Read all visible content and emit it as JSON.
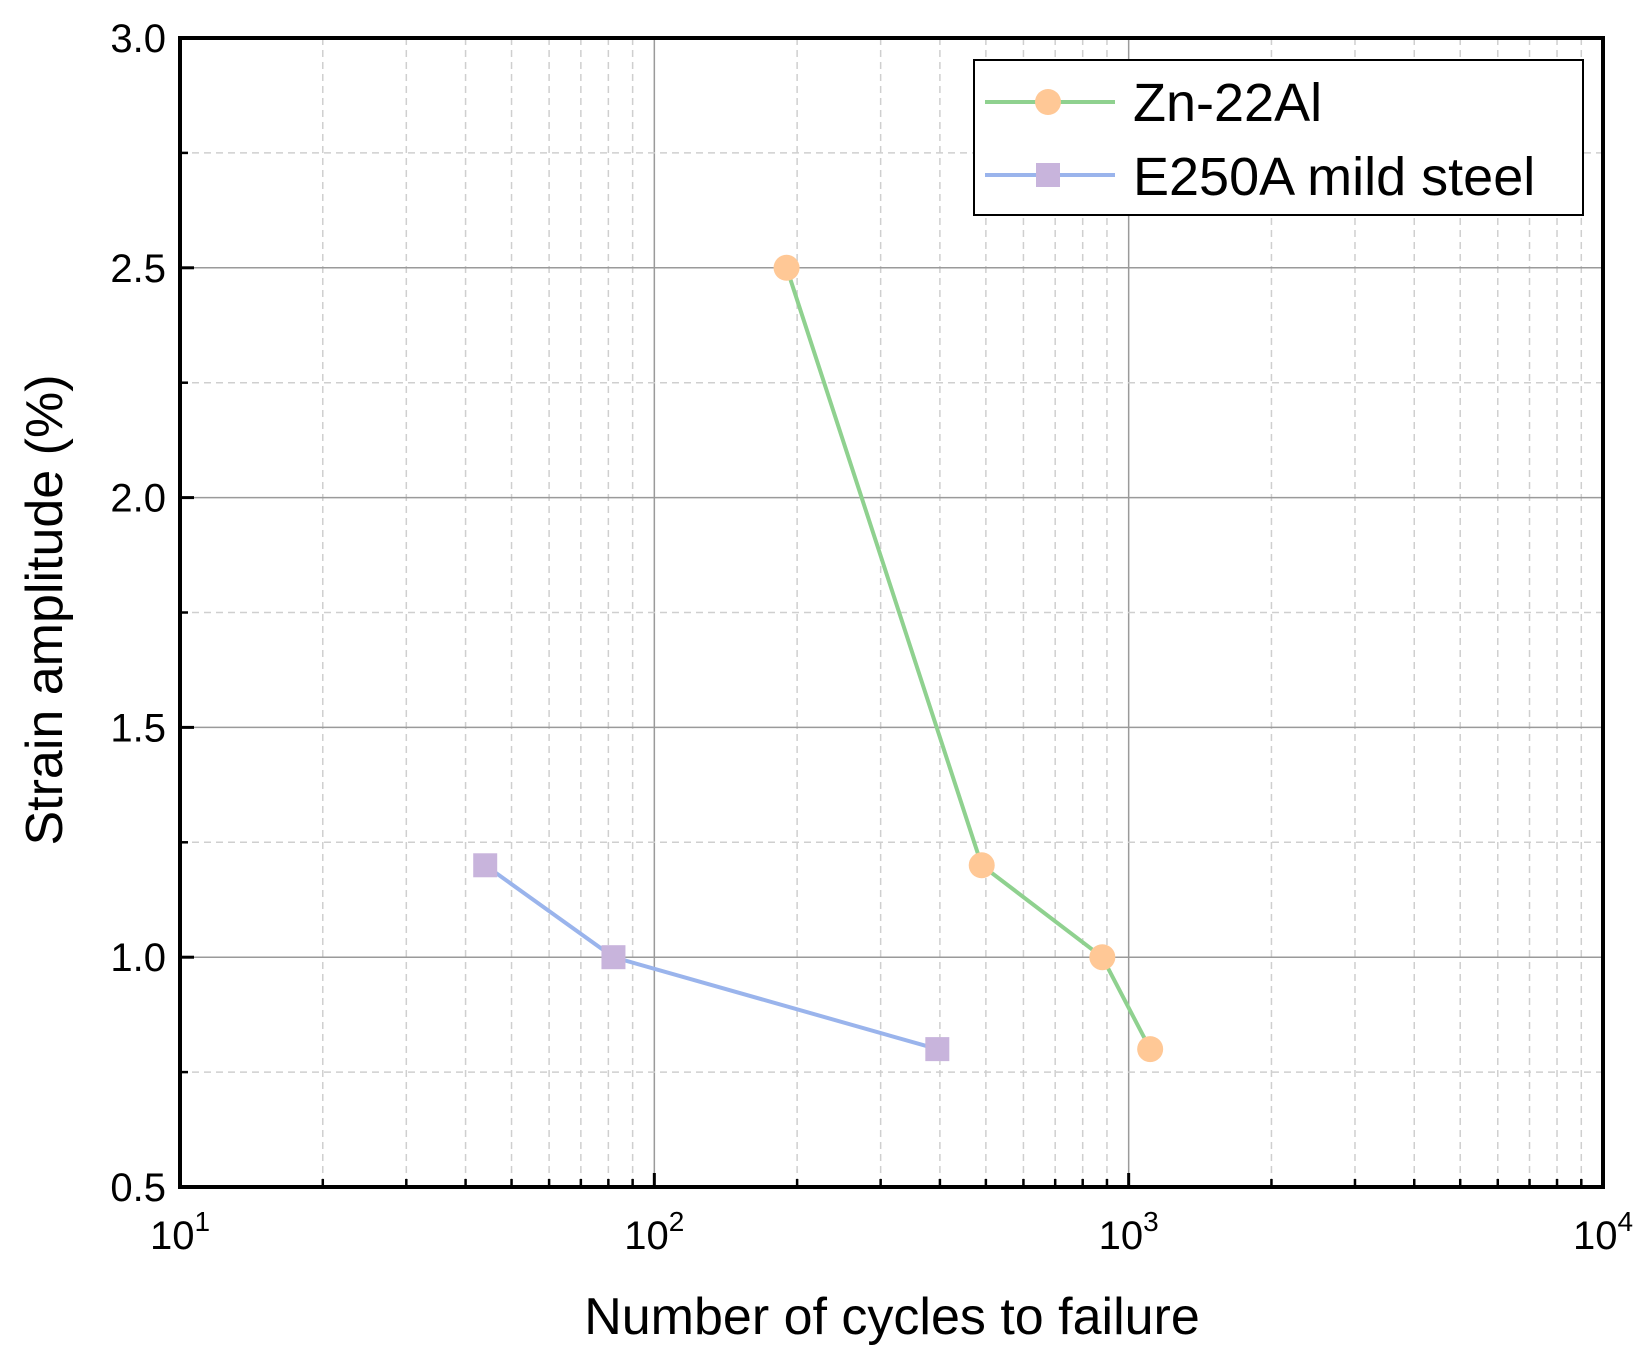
{
  "chart_data": {
    "type": "line",
    "title": "",
    "xlabel": "Number of cycles to failure",
    "ylabel": "Strain amplitude (%)",
    "x_scale": "log",
    "xlim": [
      10,
      10000
    ],
    "ylim": [
      0.5,
      3.0
    ],
    "x_ticks": [
      {
        "value": 10,
        "base": "10",
        "exp": "1"
      },
      {
        "value": 100,
        "base": "10",
        "exp": "2"
      },
      {
        "value": 1000,
        "base": "10",
        "exp": "3"
      },
      {
        "value": 10000,
        "base": "10",
        "exp": "4"
      }
    ],
    "y_ticks": [
      {
        "value": 0.5,
        "label": "0.5"
      },
      {
        "value": 1.0,
        "label": "1.0"
      },
      {
        "value": 1.5,
        "label": "1.5"
      },
      {
        "value": 2.0,
        "label": "2.0"
      },
      {
        "value": 2.5,
        "label": "2.5"
      },
      {
        "value": 3.0,
        "label": "3.0"
      }
    ],
    "grid": true,
    "legend_position": "top-right",
    "series": [
      {
        "name": "Zn-22Al",
        "marker": "circle",
        "line_color": "#8fd18f",
        "marker_color": "#ffc896",
        "x": [
          190,
          490,
          880,
          1110
        ],
        "y": [
          2.5,
          1.2,
          1.0,
          0.8
        ]
      },
      {
        "name": "E250A mild steel",
        "marker": "square",
        "line_color": "#9ab4ec",
        "marker_color": "#c8b4dc",
        "x": [
          44,
          82,
          395
        ],
        "y": [
          1.2,
          1.0,
          0.8
        ]
      }
    ]
  }
}
